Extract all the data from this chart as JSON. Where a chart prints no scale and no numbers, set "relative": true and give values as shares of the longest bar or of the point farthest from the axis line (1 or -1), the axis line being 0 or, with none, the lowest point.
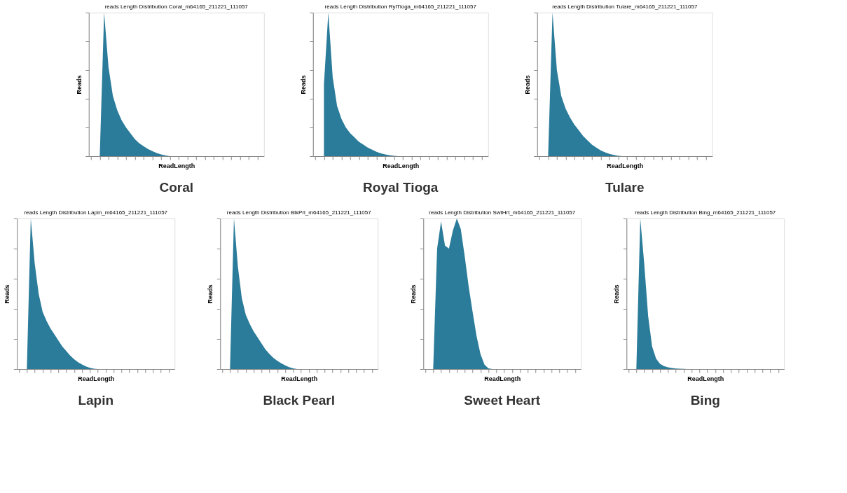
{
  "chart_data": [
    {
      "type": "area",
      "title": "reads Length Distribution Coral_m64165_211221_111057",
      "xlabel": "ReadLength",
      "ylabel": "Reads",
      "annotations": [
        "Coral"
      ],
      "relative": true,
      "tick_labels": false,
      "grid": false,
      "color": "#2b7c9a",
      "categories": [
        null,
        null,
        null,
        null,
        null,
        null,
        null,
        null,
        null,
        null,
        null,
        null,
        null,
        null,
        null,
        null,
        null,
        null,
        null,
        null,
        null,
        null,
        null,
        null,
        null,
        null,
        null,
        null,
        null,
        null,
        null,
        null,
        null,
        null,
        null,
        null,
        null,
        null,
        null,
        null
      ],
      "values": [
        null,
        null,
        0,
        1,
        0.62,
        0.42,
        0.32,
        0.25,
        0.2,
        0.16,
        0.12,
        0.09,
        0.07,
        0.05,
        0.035,
        0.022,
        0.012,
        0.005,
        0,
        null,
        null,
        null,
        null,
        null,
        null,
        null,
        null,
        null,
        null,
        null,
        null,
        null,
        null,
        null,
        null,
        null,
        null,
        null,
        null,
        null
      ]
    },
    {
      "type": "area",
      "title": "reads Length Distribution RylTioga_m64165_211221_111057",
      "xlabel": "ReadLength",
      "ylabel": "Reads",
      "annotations": [
        "Royal Tioga"
      ],
      "relative": true,
      "tick_labels": false,
      "grid": false,
      "color": "#2b7c9a",
      "categories": [
        null,
        null,
        null,
        null,
        null,
        null,
        null,
        null,
        null,
        null,
        null,
        null,
        null,
        null,
        null,
        null,
        null,
        null,
        null,
        null,
        null,
        null,
        null,
        null,
        null,
        null,
        null,
        null,
        null,
        null,
        null,
        null,
        null,
        null,
        null,
        null,
        null,
        null,
        null,
        null
      ],
      "values": [
        null,
        null,
        0.5,
        1,
        0.55,
        0.35,
        0.26,
        0.2,
        0.16,
        0.13,
        0.1,
        0.08,
        0.06,
        0.045,
        0.03,
        0.02,
        0.012,
        0.006,
        0.002,
        0,
        null,
        null,
        null,
        null,
        null,
        null,
        null,
        null,
        null,
        null,
        null,
        null,
        null,
        null,
        null,
        null,
        null,
        null,
        null,
        null
      ]
    },
    {
      "type": "area",
      "title": "reads Length Distribution Tulare_m64165_211221_111057",
      "xlabel": "ReadLength",
      "ylabel": "Reads",
      "annotations": [
        "Tulare"
      ],
      "relative": true,
      "tick_labels": false,
      "grid": false,
      "color": "#2b7c9a",
      "categories": [
        null,
        null,
        null,
        null,
        null,
        null,
        null,
        null,
        null,
        null,
        null,
        null,
        null,
        null,
        null,
        null,
        null,
        null,
        null,
        null,
        null,
        null,
        null,
        null,
        null,
        null,
        null,
        null,
        null,
        null,
        null,
        null,
        null,
        null,
        null,
        null,
        null,
        null,
        null,
        null
      ],
      "values": [
        null,
        null,
        0,
        1,
        0.6,
        0.42,
        0.33,
        0.27,
        0.22,
        0.18,
        0.14,
        0.11,
        0.08,
        0.06,
        0.04,
        0.027,
        0.016,
        0.008,
        0.003,
        0,
        null,
        null,
        null,
        null,
        null,
        null,
        null,
        null,
        null,
        null,
        null,
        null,
        null,
        null,
        null,
        null,
        null,
        null,
        null,
        null
      ]
    },
    {
      "type": "area",
      "title": "reads Length Distribution Lapin_m64165_211221_111057",
      "xlabel": "ReadLength",
      "ylabel": "Reads",
      "annotations": [
        "Lapin"
      ],
      "relative": true,
      "tick_labels": false,
      "grid": false,
      "color": "#2b7c9a",
      "categories": [
        null,
        null,
        null,
        null,
        null,
        null,
        null,
        null,
        null,
        null,
        null,
        null,
        null,
        null,
        null,
        null,
        null,
        null,
        null,
        null,
        null,
        null,
        null,
        null,
        null,
        null,
        null,
        null,
        null,
        null,
        null,
        null,
        null,
        null,
        null,
        null,
        null,
        null,
        null,
        null
      ],
      "values": [
        null,
        null,
        0,
        1,
        0.7,
        0.5,
        0.38,
        0.32,
        0.27,
        0.23,
        0.19,
        0.15,
        0.12,
        0.09,
        0.065,
        0.045,
        0.03,
        0.018,
        0.008,
        0.002,
        0,
        null,
        null,
        null,
        null,
        null,
        null,
        null,
        null,
        null,
        null,
        null,
        null,
        null,
        null,
        null,
        null,
        null,
        null,
        null
      ]
    },
    {
      "type": "area",
      "title": "reads Length Distribution BlkPrl_m64165_211221_111057",
      "xlabel": "ReadLength",
      "ylabel": "Reads",
      "annotations": [
        "Black Pearl"
      ],
      "relative": true,
      "tick_labels": false,
      "grid": false,
      "color": "#2b7c9a",
      "categories": [
        null,
        null,
        null,
        null,
        null,
        null,
        null,
        null,
        null,
        null,
        null,
        null,
        null,
        null,
        null,
        null,
        null,
        null,
        null,
        null,
        null,
        null,
        null,
        null,
        null,
        null,
        null,
        null,
        null,
        null,
        null,
        null,
        null,
        null,
        null,
        null,
        null,
        null,
        null,
        null
      ],
      "values": [
        null,
        null,
        0,
        1,
        0.68,
        0.47,
        0.36,
        0.3,
        0.25,
        0.21,
        0.17,
        0.13,
        0.1,
        0.075,
        0.055,
        0.038,
        0.024,
        0.013,
        0.005,
        0,
        null,
        null,
        null,
        null,
        null,
        null,
        null,
        null,
        null,
        null,
        null,
        null,
        null,
        null,
        null,
        null,
        null,
        null,
        null,
        null
      ]
    },
    {
      "type": "area",
      "title": "reads Length Distribution SwtHrt_m64165_211221_111057",
      "xlabel": "ReadLength",
      "ylabel": "Reads",
      "annotations": [
        "Sweet Heart"
      ],
      "relative": true,
      "tick_labels": false,
      "grid": false,
      "color": "#2b7c9a",
      "categories": [
        null,
        null,
        null,
        null,
        null,
        null,
        null,
        null,
        null,
        null,
        null,
        null,
        null,
        null,
        null,
        null,
        null,
        null,
        null,
        null,
        null,
        null,
        null,
        null,
        null,
        null,
        null,
        null,
        null,
        null,
        null,
        null,
        null,
        null,
        null,
        null,
        null,
        null,
        null,
        null
      ],
      "values": [
        null,
        null,
        0,
        0.8,
        0.98,
        0.82,
        0.8,
        0.92,
        1,
        0.93,
        0.75,
        0.55,
        0.38,
        0.22,
        0.1,
        0.03,
        0.005,
        0,
        null,
        null,
        null,
        null,
        null,
        null,
        null,
        null,
        null,
        null,
        null,
        null,
        null,
        null,
        null,
        null,
        null,
        null,
        null,
        null,
        null,
        null
      ]
    },
    {
      "type": "area",
      "title": "reads Length Distribution Bing_m64165_211221_111057",
      "xlabel": "ReadLength",
      "ylabel": "Reads",
      "annotations": [
        "Bing"
      ],
      "relative": true,
      "tick_labels": false,
      "grid": false,
      "color": "#2b7c9a",
      "categories": [
        null,
        null,
        null,
        null,
        null,
        null,
        null,
        null,
        null,
        null,
        null,
        null,
        null,
        null,
        null,
        null,
        null,
        null,
        null,
        null,
        null,
        null,
        null,
        null,
        null,
        null,
        null,
        null,
        null,
        null,
        null,
        null,
        null,
        null,
        null,
        null,
        null,
        null,
        null,
        null
      ],
      "values": [
        null,
        null,
        0,
        1,
        0.7,
        0.35,
        0.15,
        0.07,
        0.035,
        0.02,
        0.012,
        0.007,
        0.004,
        0.002,
        0.001,
        0,
        null,
        null,
        null,
        null,
        null,
        null,
        null,
        null,
        null,
        null,
        null,
        null,
        null,
        null,
        null,
        null,
        null,
        null,
        null,
        null,
        null,
        null,
        null,
        null
      ]
    }
  ]
}
